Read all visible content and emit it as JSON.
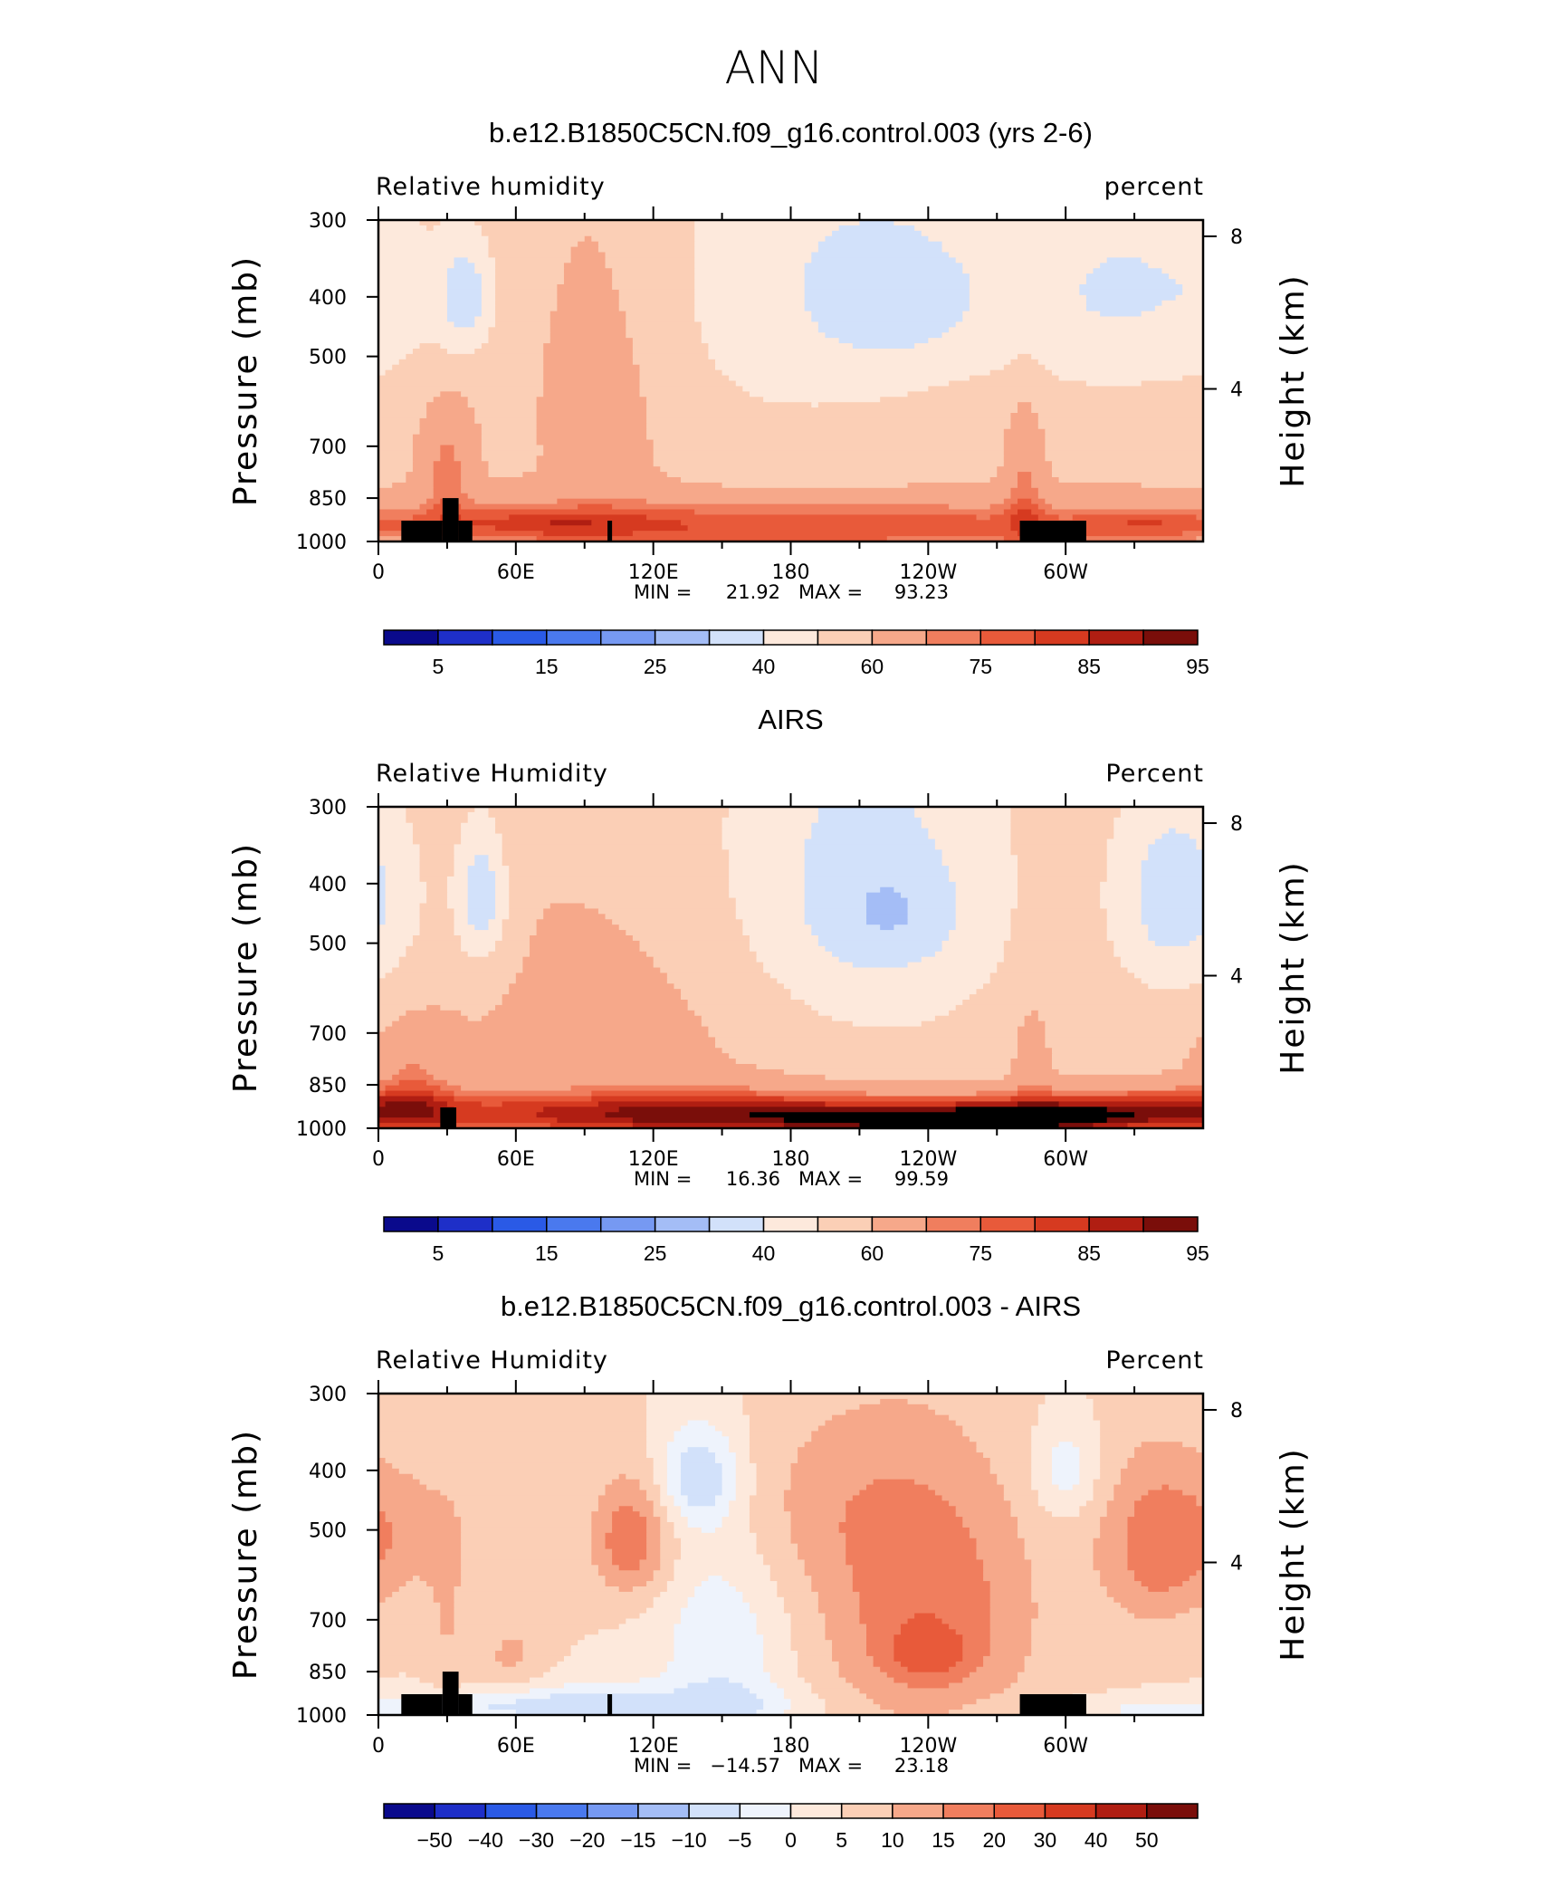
{
  "title": "ANN",
  "chart_data": [
    {
      "type": "contour",
      "panel_id": "model",
      "title": "b.e12.B1850C5CN.f09_g16.control.003 (yrs 2-6)",
      "left_label": "Relative  humidity",
      "right_label": "percent",
      "ylabel": "Pressure  (mb)",
      "ylabel_right": "Height  (km)",
      "x_ticks": [
        {
          "lon": 0,
          "label": "0"
        },
        {
          "lon": 60,
          "label": "60E"
        },
        {
          "lon": 120,
          "label": "120E"
        },
        {
          "lon": 180,
          "label": "180"
        },
        {
          "lon": 240,
          "label": "120W"
        },
        {
          "lon": 300,
          "label": "60W"
        }
      ],
      "y_ticks": [
        {
          "p": 300,
          "label": "300"
        },
        {
          "p": 400,
          "label": "400"
        },
        {
          "p": 500,
          "label": "500"
        },
        {
          "p": 700,
          "label": "700"
        },
        {
          "p": 850,
          "label": "850"
        },
        {
          "p": 1000,
          "label": "1000"
        }
      ],
      "height_ticks": [
        {
          "km": 8,
          "label": "8"
        },
        {
          "km": 4,
          "label": "4"
        }
      ],
      "xlim": [
        0,
        360
      ],
      "ylim": [
        300,
        1000
      ],
      "min_label": "MIN =",
      "min_value": "21.92",
      "max_label": "MAX =",
      "max_value": "93.23",
      "colorbar_labels": [
        "5",
        "15",
        "25",
        "40",
        "60",
        "75",
        "85",
        "95"
      ],
      "field": {
        "base": 58,
        "blobs": [
          {
            "lon": 180,
            "p": 360,
            "sx": 55,
            "sy": 230,
            "a": -13
          },
          {
            "lon": 230,
            "p": 400,
            "sx": 30,
            "sy": 90,
            "a": -16
          },
          {
            "lon": 38,
            "p": 400,
            "sx": 9,
            "sy": 65,
            "a": -22
          },
          {
            "lon": 305,
            "p": 400,
            "sx": 30,
            "sy": 120,
            "a": -10
          },
          {
            "lon": 340,
            "p": 380,
            "sx": 30,
            "sy": 130,
            "a": -12
          },
          {
            "lon": 5,
            "p": 400,
            "sx": 14,
            "sy": 100,
            "a": -6
          },
          {
            "lon": 100,
            "p": 520,
            "sx": 22,
            "sy": 260,
            "a": 8
          },
          {
            "lon": 30,
            "p": 760,
            "sx": 8,
            "sy": 120,
            "a": 14
          },
          {
            "lon": 282,
            "p": 780,
            "sx": 6,
            "sy": 160,
            "a": 12
          },
          {
            "lon": 180,
            "p": 945,
            "sx": 150,
            "sy": 70,
            "a": 22
          },
          {
            "lon": 70,
            "p": 930,
            "sx": 30,
            "sy": 40,
            "a": 9
          },
          {
            "lon": 340,
            "p": 935,
            "sx": 25,
            "sy": 40,
            "a": 10
          }
        ]
      },
      "topography": [
        [
          10,
          28,
          925
        ],
        [
          28,
          35,
          850
        ],
        [
          35,
          41,
          925
        ],
        [
          100,
          102,
          925
        ],
        [
          280,
          309,
          925
        ]
      ]
    },
    {
      "type": "contour",
      "panel_id": "airs",
      "title": "AIRS",
      "left_label": "Relative  Humidity",
      "right_label": "Percent",
      "ylabel": "Pressure  (mb)",
      "ylabel_right": "Height  (km)",
      "x_ticks": [
        {
          "lon": 0,
          "label": "0"
        },
        {
          "lon": 60,
          "label": "60E"
        },
        {
          "lon": 120,
          "label": "120E"
        },
        {
          "lon": 180,
          "label": "180"
        },
        {
          "lon": 240,
          "label": "120W"
        },
        {
          "lon": 300,
          "label": "60W"
        }
      ],
      "y_ticks": [
        {
          "p": 300,
          "label": "300"
        },
        {
          "p": 400,
          "label": "400"
        },
        {
          "p": 500,
          "label": "500"
        },
        {
          "p": 700,
          "label": "700"
        },
        {
          "p": 850,
          "label": "850"
        },
        {
          "p": 1000,
          "label": "1000"
        }
      ],
      "height_ticks": [
        {
          "km": 8,
          "label": "8"
        },
        {
          "km": 4,
          "label": "4"
        }
      ],
      "xlim": [
        0,
        360
      ],
      "ylim": [
        300,
        1000
      ],
      "min_label": "MIN =",
      "min_value": "16.36",
      "max_label": "MAX =",
      "max_value": "99.59",
      "colorbar_labels": [
        "5",
        "15",
        "25",
        "40",
        "60",
        "75",
        "85",
        "95"
      ],
      "field": {
        "base": 58,
        "blobs": [
          {
            "lon": 210,
            "p": 400,
            "sx": 48,
            "sy": 230,
            "a": -22
          },
          {
            "lon": 225,
            "p": 450,
            "sx": 20,
            "sy": 60,
            "a": -10
          },
          {
            "lon": 45,
            "p": 420,
            "sx": 8,
            "sy": 80,
            "a": -25
          },
          {
            "lon": 345,
            "p": 420,
            "sx": 18,
            "sy": 120,
            "a": -22
          },
          {
            "lon": 10,
            "p": 420,
            "sx": 16,
            "sy": 110,
            "a": -6
          },
          {
            "lon": 130,
            "p": 650,
            "sx": 60,
            "sy": 220,
            "a": 6
          },
          {
            "lon": 140,
            "p": 950,
            "sx": 90,
            "sy": 60,
            "a": 33
          },
          {
            "lon": 260,
            "p": 975,
            "sx": 50,
            "sy": 40,
            "a": 30
          },
          {
            "lon": 15,
            "p": 850,
            "sx": 12,
            "sy": 120,
            "a": 12
          },
          {
            "lon": 325,
            "p": 930,
            "sx": 45,
            "sy": 50,
            "a": 24
          },
          {
            "lon": 285,
            "p": 760,
            "sx": 6,
            "sy": 130,
            "a": 8
          }
        ]
      },
      "topography": [
        [
          27,
          34,
          925
        ]
      ]
    },
    {
      "type": "contour",
      "panel_id": "diff",
      "title": "b.e12.B1850C5CN.f09_g16.control.003 - AIRS",
      "left_label": "Relative  Humidity",
      "right_label": "Percent",
      "ylabel": "Pressure  (mb)",
      "ylabel_right": "Height  (km)",
      "x_ticks": [
        {
          "lon": 0,
          "label": "0"
        },
        {
          "lon": 60,
          "label": "60E"
        },
        {
          "lon": 120,
          "label": "120E"
        },
        {
          "lon": 180,
          "label": "180"
        },
        {
          "lon": 240,
          "label": "120W"
        },
        {
          "lon": 300,
          "label": "60W"
        }
      ],
      "y_ticks": [
        {
          "p": 300,
          "label": "300"
        },
        {
          "p": 400,
          "label": "400"
        },
        {
          "p": 500,
          "label": "500"
        },
        {
          "p": 700,
          "label": "700"
        },
        {
          "p": 850,
          "label": "850"
        },
        {
          "p": 1000,
          "label": "1000"
        }
      ],
      "height_ticks": [
        {
          "km": 8,
          "label": "8"
        },
        {
          "km": 4,
          "label": "4"
        }
      ],
      "xlim": [
        0,
        360
      ],
      "ylim": [
        300,
        1000
      ],
      "min_label": "MIN =",
      "min_value": "−14.57",
      "max_label": "MAX =",
      "max_value": "23.18",
      "colorbar_labels": [
        "−50",
        "−40",
        "−30",
        "−20",
        "−15",
        "−10",
        "−5",
        "0",
        "5",
        "10",
        "15",
        "20",
        "30",
        "40",
        "50"
      ],
      "field": {
        "base": 5,
        "blobs": [
          {
            "lon": 240,
            "p": 700,
            "sx": 32,
            "sy": 220,
            "a": 14
          },
          {
            "lon": 240,
            "p": 800,
            "sx": 12,
            "sy": 50,
            "a": 8
          },
          {
            "lon": 340,
            "p": 530,
            "sx": 18,
            "sy": 120,
            "a": 13
          },
          {
            "lon": 110,
            "p": 520,
            "sx": 12,
            "sy": 80,
            "a": 14
          },
          {
            "lon": 140,
            "p": 410,
            "sx": 12,
            "sy": 55,
            "a": -14
          },
          {
            "lon": 150,
            "p": 800,
            "sx": 20,
            "sy": 250,
            "a": -9
          },
          {
            "lon": 155,
            "p": 960,
            "sx": 25,
            "sy": 50,
            "a": -6
          },
          {
            "lon": 300,
            "p": 400,
            "sx": 10,
            "sy": 50,
            "a": -9
          },
          {
            "lon": 60,
            "p": 970,
            "sx": 40,
            "sy": 40,
            "a": -9
          },
          {
            "lon": 95,
            "p": 950,
            "sx": 25,
            "sy": 60,
            "a": -7
          },
          {
            "lon": 330,
            "p": 980,
            "sx": 40,
            "sy": 30,
            "a": -5
          },
          {
            "lon": 15,
            "p": 500,
            "sx": 20,
            "sy": 90,
            "a": 6
          },
          {
            "lon": 58,
            "p": 800,
            "sx": 10,
            "sy": 80,
            "a": 6
          },
          {
            "lon": 30,
            "p": 700,
            "sx": 6,
            "sy": 150,
            "a": 5
          },
          {
            "lon": 200,
            "p": 450,
            "sx": 40,
            "sy": 120,
            "a": 6
          }
        ]
      },
      "topography": [
        [
          10,
          28,
          925
        ],
        [
          28,
          35,
          850
        ],
        [
          35,
          41,
          925
        ],
        [
          100,
          102,
          925
        ],
        [
          280,
          309,
          925
        ]
      ]
    }
  ],
  "colors": {
    "abs_scale": [
      "#0a0a8c",
      "#1e2fc8",
      "#2a5ae6",
      "#4a79ee",
      "#7699f2",
      "#a4bdf6",
      "#d2e1fa",
      "#fde9dc",
      "#fbcfb6",
      "#f6a88a",
      "#f07e5e",
      "#e85a3a",
      "#d63a20",
      "#b01e12",
      "#7a0e0a"
    ],
    "diff_scale": [
      "#0a0a8c",
      "#1e2fc8",
      "#2a5ae6",
      "#4a79ee",
      "#7699f2",
      "#a4bdf6",
      "#d2e1fa",
      "#eef3fc",
      "#fde9dc",
      "#fbcfb6",
      "#f6a88a",
      "#f07e5e",
      "#e85a3a",
      "#d63a20",
      "#b01e12",
      "#7a0e0a"
    ],
    "abs_levels": [
      5,
      10,
      15,
      20,
      25,
      30,
      40,
      50,
      60,
      70,
      75,
      80,
      85,
      90,
      95
    ],
    "diff_levels": [
      -50,
      -40,
      -30,
      -20,
      -15,
      -10,
      -5,
      0,
      5,
      10,
      15,
      20,
      30,
      40,
      50
    ],
    "topography": "#000000"
  }
}
